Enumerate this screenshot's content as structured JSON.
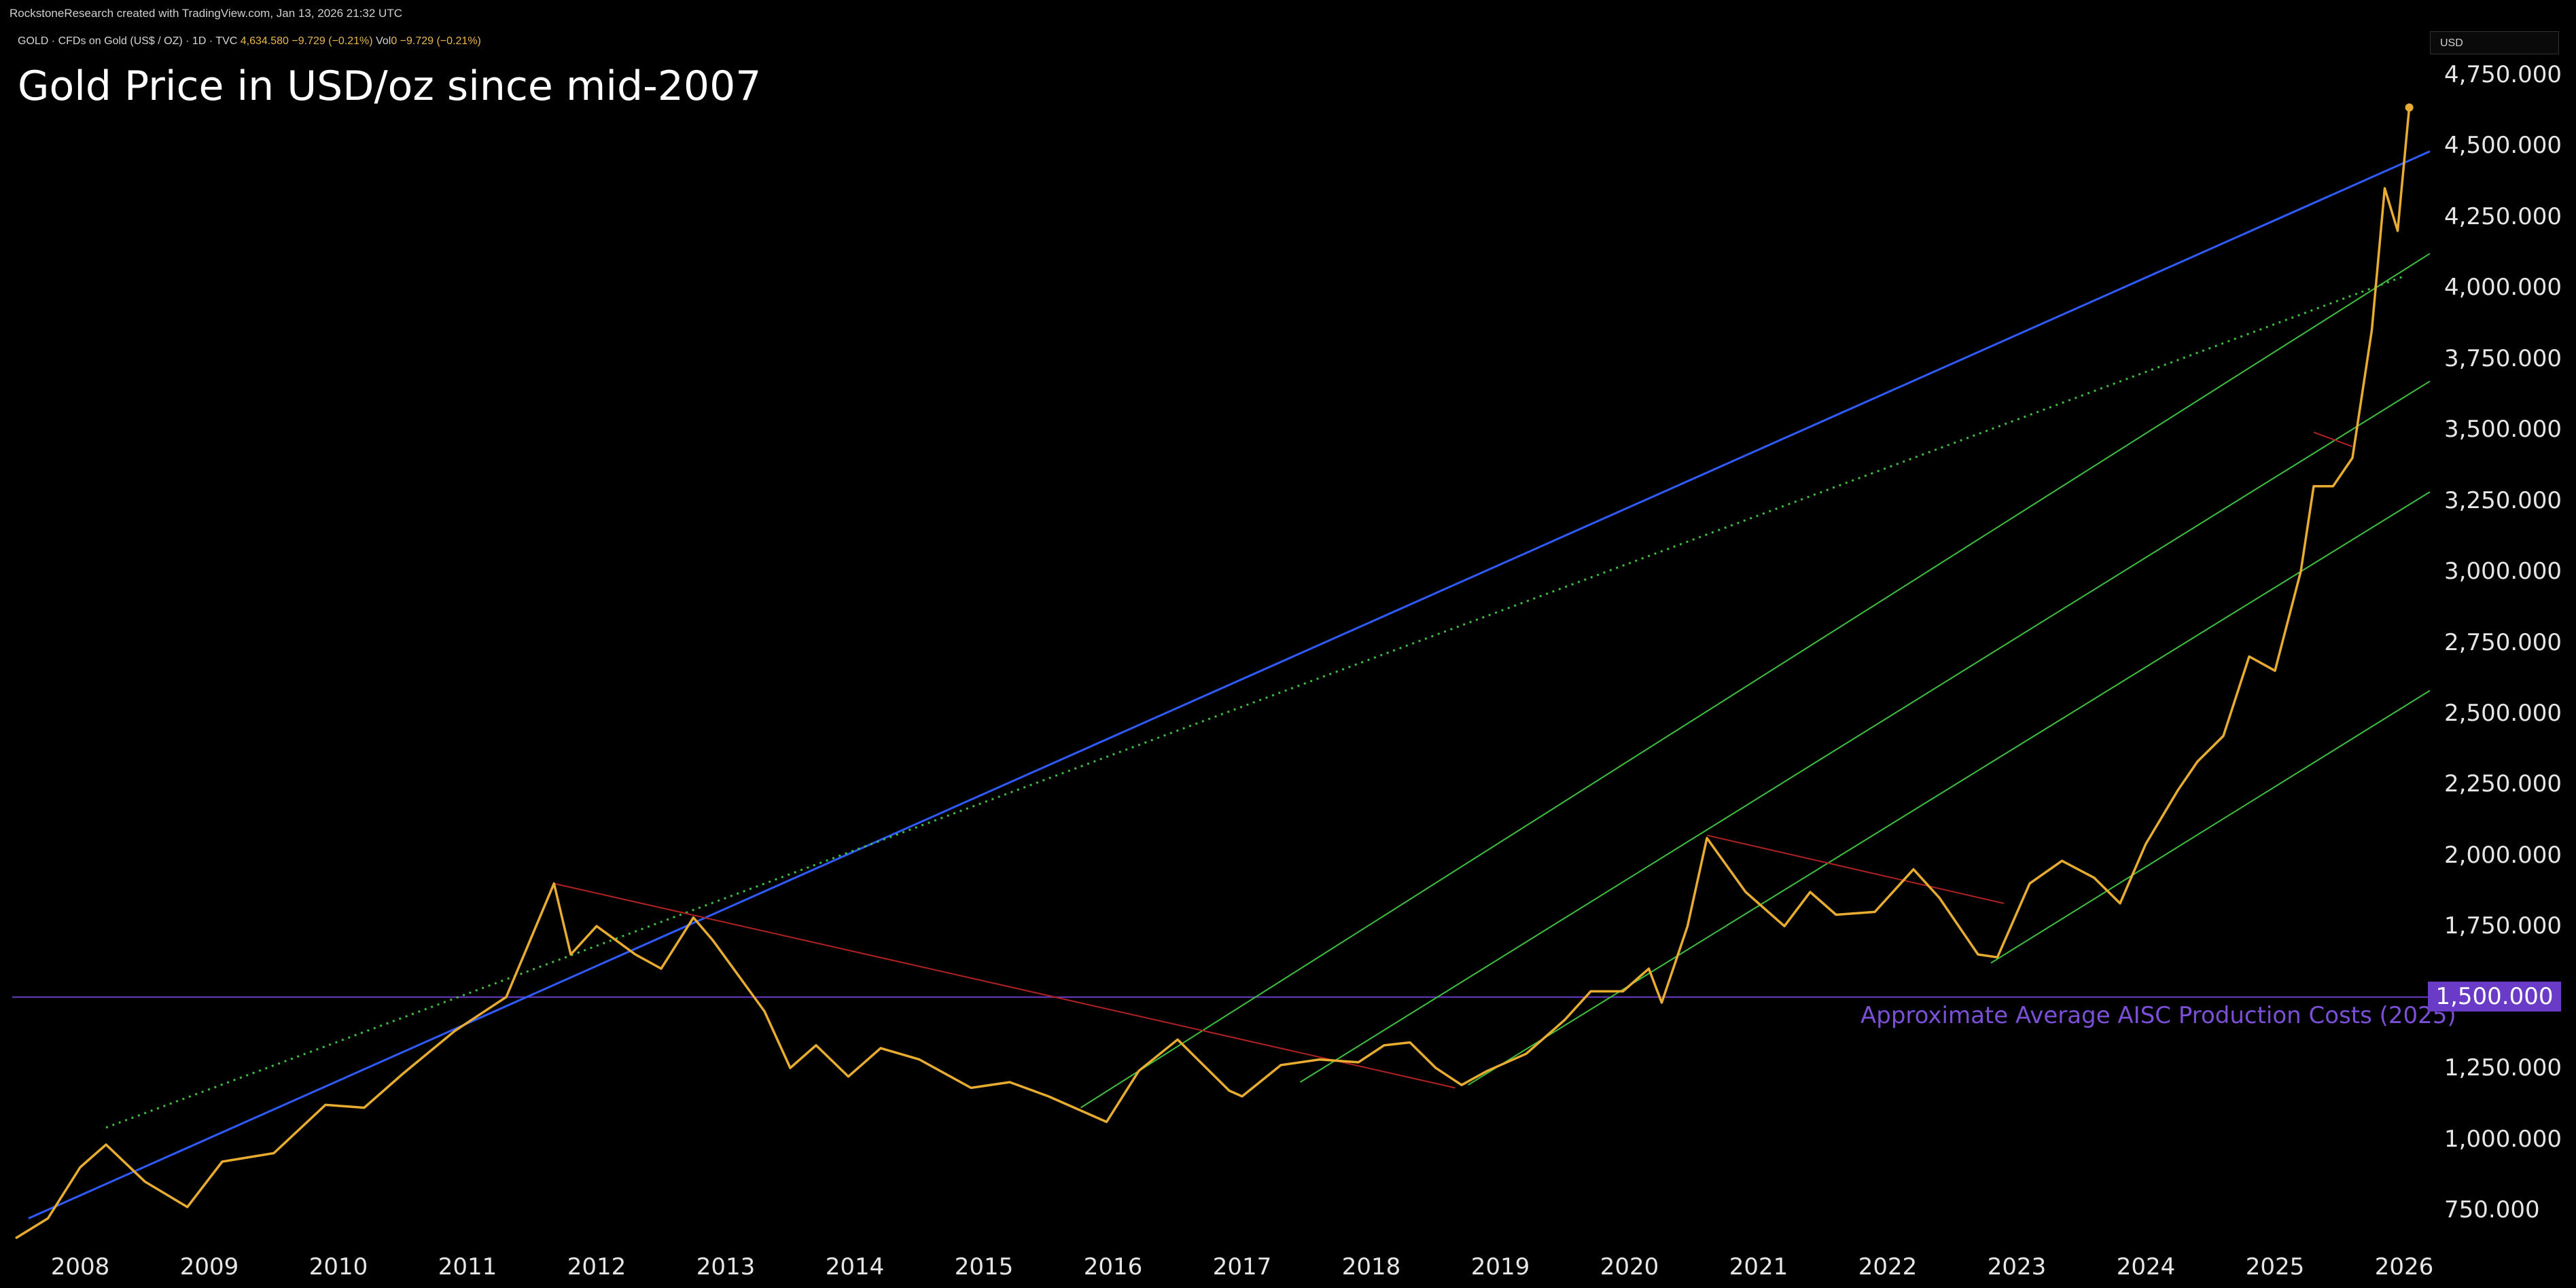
{
  "header": {
    "credit": "RockstoneResearch created with TradingView.com, Jan 13, 2026 21:32 UTC",
    "symbol": "GOLD · CFDs on Gold (US$ / OZ) · 1D · TVC",
    "last_price": "4,634.580",
    "change": "−9.729 (−0.21%)",
    "vol_label": "Vol",
    "vol_value": "0",
    "vol_change": "−9.729 (−0.21%)"
  },
  "title": "Gold Price in USD/oz since mid-2007",
  "currency_selector": "USD",
  "price_axis": {
    "labels": [
      "4,750.000",
      "4,500.000",
      "4,250.000",
      "4,000.000",
      "3,750.000",
      "3,500.000",
      "3,250.000",
      "3,000.000",
      "2,750.000",
      "2,500.000",
      "2,250.000",
      "2,000.000",
      "1,750.000",
      "1,500.000",
      "1,250.000",
      "1,000.000",
      "750.000"
    ]
  },
  "time_axis": {
    "labels": [
      "2008",
      "2009",
      "2010",
      "2011",
      "2012",
      "2013",
      "2014",
      "2015",
      "2016",
      "2017",
      "2018",
      "2019",
      "2020",
      "2021",
      "2022",
      "2023",
      "2024",
      "2025",
      "2026"
    ]
  },
  "level": {
    "value": "1,500.000",
    "note": "Approximate Average AISC Production Costs (2025)"
  },
  "colors": {
    "price": "#e8ad30",
    "trend_blue": "#2f5bff",
    "channel_green": "#3fbf3f",
    "downtrend_red": "#b22222",
    "level_purple": "#6a3bc7"
  },
  "chart_data": {
    "type": "line",
    "title": "Gold Price in USD/oz since mid-2007",
    "xlabel": "",
    "ylabel": "",
    "ylim": [
      650,
      4850
    ],
    "series": [
      {
        "name": "GOLD · CFDs on Gold (US$ / OZ)",
        "x": [
          2007.5,
          2007.75,
          2008.0,
          2008.2,
          2008.5,
          2008.83,
          2009.1,
          2009.5,
          2009.9,
          2010.2,
          2010.5,
          2010.9,
          2011.3,
          2011.67,
          2011.8,
          2012.0,
          2012.3,
          2012.5,
          2012.75,
          2012.9,
          2013.3,
          2013.5,
          2013.7,
          2013.95,
          2014.2,
          2014.5,
          2014.9,
          2015.2,
          2015.5,
          2015.95,
          2016.2,
          2016.5,
          2016.9,
          2017.0,
          2017.3,
          2017.6,
          2017.9,
          2018.1,
          2018.3,
          2018.5,
          2018.7,
          2018.9,
          2019.2,
          2019.5,
          2019.7,
          2019.95,
          2020.15,
          2020.25,
          2020.45,
          2020.6,
          2020.9,
          2021.2,
          2021.4,
          2021.6,
          2021.9,
          2022.2,
          2022.4,
          2022.7,
          2022.85,
          2023.1,
          2023.35,
          2023.6,
          2023.8,
          2024.0,
          2024.25,
          2024.4,
          2024.6,
          2024.8,
          2025.0,
          2025.2,
          2025.3,
          2025.45,
          2025.6,
          2025.75,
          2025.85,
          2025.95,
          2026.04
        ],
        "values": [
          650,
          720,
          900,
          980,
          850,
          760,
          920,
          950,
          1120,
          1110,
          1230,
          1380,
          1500,
          1900,
          1650,
          1750,
          1650,
          1600,
          1780,
          1700,
          1450,
          1250,
          1330,
          1220,
          1320,
          1280,
          1180,
          1200,
          1150,
          1060,
          1240,
          1350,
          1170,
          1150,
          1260,
          1280,
          1270,
          1330,
          1340,
          1250,
          1190,
          1240,
          1300,
          1420,
          1520,
          1520,
          1600,
          1480,
          1750,
          2060,
          1870,
          1750,
          1870,
          1790,
          1800,
          1950,
          1850,
          1650,
          1640,
          1900,
          1980,
          1920,
          1830,
          2040,
          2230,
          2330,
          2420,
          2700,
          2650,
          3000,
          3300,
          3300,
          3400,
          3850,
          4350,
          4200,
          4634.58
        ]
      }
    ],
    "horizontal_line": {
      "value": 1500,
      "label": "Approximate Average AISC Production Costs (2025)"
    },
    "trendlines": [
      {
        "color_key": "trend_blue",
        "style": "solid",
        "from": [
          2007.6,
          720
        ],
        "to": [
          2026.2,
          4480
        ]
      },
      {
        "color_key": "channel_green",
        "style": "dotted",
        "from": [
          2008.2,
          1040
        ],
        "to": [
          2026.0,
          4040
        ]
      },
      {
        "color_key": "channel_green",
        "style": "solid",
        "from": [
          2015.75,
          1110
        ],
        "to": [
          2026.2,
          4120
        ]
      },
      {
        "color_key": "channel_green",
        "style": "solid",
        "from": [
          2017.45,
          1200
        ],
        "to": [
          2026.2,
          3670
        ]
      },
      {
        "color_key": "channel_green",
        "style": "solid",
        "from": [
          2018.75,
          1190
        ],
        "to": [
          2026.2,
          3280
        ]
      },
      {
        "color_key": "channel_green",
        "style": "solid",
        "from": [
          2022.8,
          1620
        ],
        "to": [
          2026.2,
          2580
        ]
      },
      {
        "color_key": "downtrend_red",
        "style": "solid",
        "from": [
          2011.67,
          1900
        ],
        "to": [
          2018.65,
          1180
        ]
      },
      {
        "color_key": "downtrend_red",
        "style": "solid",
        "from": [
          2020.6,
          2070
        ],
        "to": [
          2022.9,
          1830
        ]
      },
      {
        "color_key": "downtrend_red",
        "style": "solid",
        "from": [
          2025.3,
          3490
        ],
        "to": [
          2025.6,
          3440
        ]
      }
    ]
  }
}
